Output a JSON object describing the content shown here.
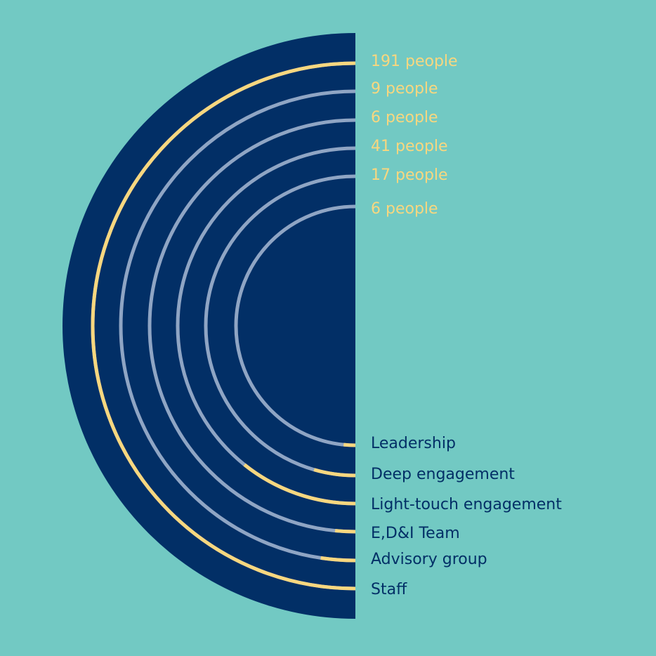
{
  "colors": {
    "background": "#72c9c3",
    "disc": "#022f66",
    "track": "#8fa5c4",
    "highlight": "#f8d77f",
    "count_text": "#f8d77f",
    "category_text": "#022f66"
  },
  "chart_data": {
    "type": "radial-bar",
    "title": "",
    "unit": "people",
    "max_value": 191,
    "series": [
      {
        "category": "Staff",
        "value": 191,
        "count_label": "191 people"
      },
      {
        "category": "Advisory group",
        "value": 9,
        "count_label": "9 people"
      },
      {
        "category": "E,D&I Team",
        "value": 6,
        "count_label": "6 people"
      },
      {
        "category": "Light-touch engagement",
        "value": 41,
        "count_label": "41 people"
      },
      {
        "category": "Deep engagement",
        "value": 17,
        "count_label": "17 people"
      },
      {
        "category": "Leadership",
        "value": 6,
        "count_label": "6 people"
      }
    ]
  }
}
